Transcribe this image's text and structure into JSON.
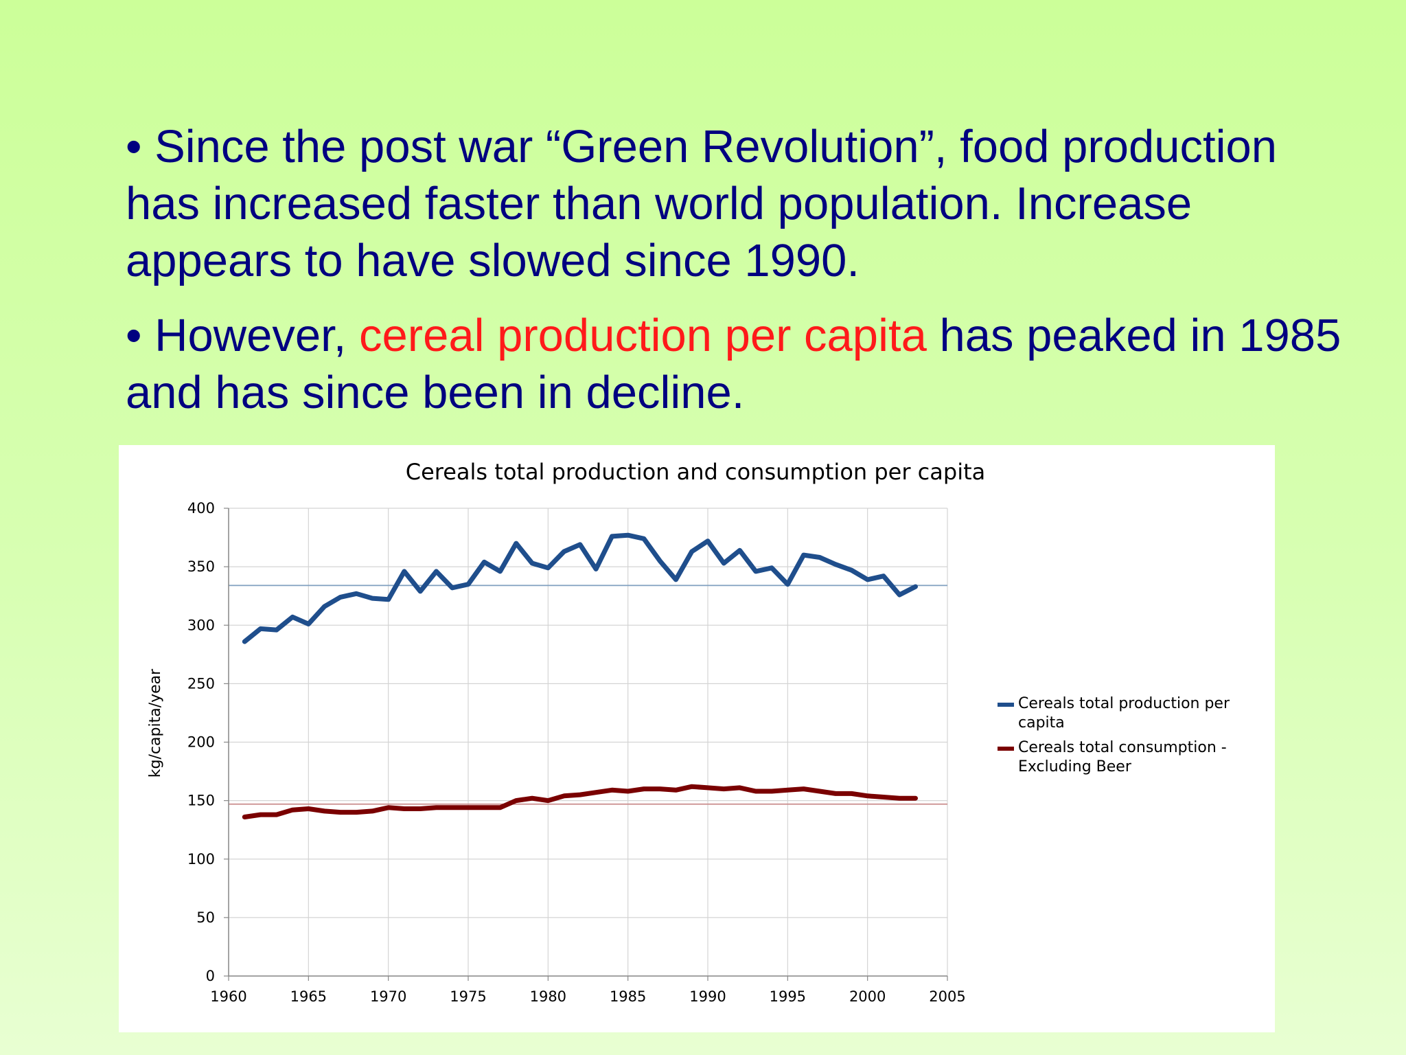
{
  "slide": {
    "bullet1": {
      "marker": "•",
      "text": " Since the post war “Green Revolution”, food production has increased faster than world population. Increase appears to have slowed since 1990."
    },
    "bullet2": {
      "marker": "•",
      "before": " However, ",
      "highlight": "cereal production per capita",
      "after": " has peaked in 1985 and has since been in decline."
    },
    "highlight_color": "#ff1a1a",
    "text_color": "#000080"
  },
  "chart_data": {
    "type": "line",
    "title": "Cereals total production and consumption per capita",
    "xlabel": "",
    "ylabel": "kg/capita/year",
    "xlim": [
      1960,
      2005
    ],
    "ylim": [
      0,
      400
    ],
    "x_ticks": [
      1960,
      1965,
      1970,
      1975,
      1980,
      1985,
      1990,
      1995,
      2000,
      2005
    ],
    "y_ticks": [
      0,
      50,
      100,
      150,
      200,
      250,
      300,
      350,
      400
    ],
    "grid": true,
    "legend_position": "right",
    "x": [
      1961,
      1962,
      1963,
      1964,
      1965,
      1966,
      1967,
      1968,
      1969,
      1970,
      1971,
      1972,
      1973,
      1974,
      1975,
      1976,
      1977,
      1978,
      1979,
      1980,
      1981,
      1982,
      1983,
      1984,
      1985,
      1986,
      1987,
      1988,
      1989,
      1990,
      1991,
      1992,
      1993,
      1994,
      1995,
      1996,
      1997,
      1998,
      1999,
      2000,
      2001,
      2002,
      2003
    ],
    "series": [
      {
        "name": "Cereals total production per capita",
        "color": "#1f4e8c",
        "values": [
          286,
          297,
          296,
          307,
          301,
          316,
          324,
          327,
          323,
          322,
          346,
          329,
          346,
          332,
          335,
          354,
          346,
          370,
          353,
          349,
          363,
          369,
          348,
          376,
          377,
          374,
          355,
          339,
          363,
          372,
          353,
          364,
          346,
          349,
          335,
          360,
          358,
          352,
          347,
          339,
          342,
          326,
          333
        ],
        "reference_line": 334
      },
      {
        "name": "Cereals total consumption - Excluding Beer",
        "color": "#7a0000",
        "values": [
          136,
          138,
          138,
          142,
          143,
          141,
          140,
          140,
          141,
          144,
          143,
          143,
          144,
          144,
          144,
          144,
          144,
          150,
          152,
          150,
          154,
          155,
          157,
          159,
          158,
          160,
          160,
          159,
          162,
          161,
          160,
          161,
          158,
          158,
          159,
          160,
          158,
          156,
          156,
          154,
          153,
          152,
          152
        ],
        "reference_line": 147
      }
    ],
    "reference_line_colors": [
      "#7f9fbf",
      "#c98c8c"
    ]
  }
}
